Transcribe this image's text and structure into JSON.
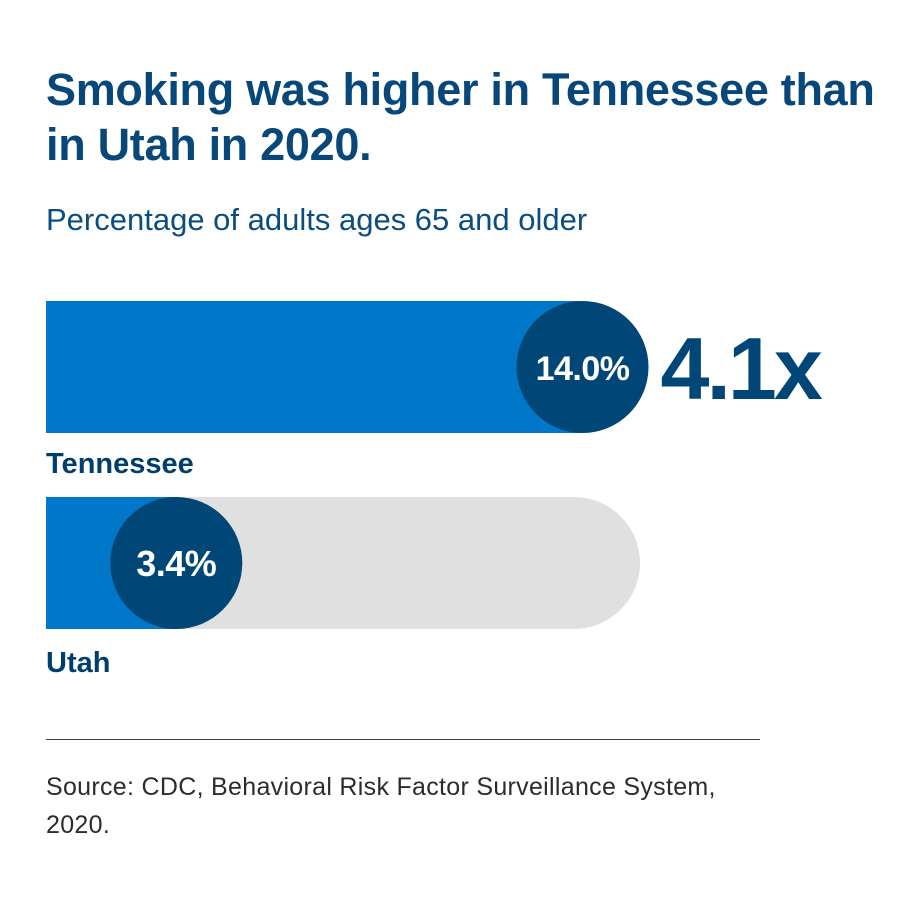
{
  "title": "Smoking was higher in Tennessee than in Utah in 2020.",
  "subtitle": "Percentage of adults ages 65 and older",
  "source": "Source: CDC, Behavioral Risk Factor Surveillance System, 2020.",
  "colors": {
    "bar": "#0077c8",
    "bubble": "#004677",
    "track": "#e0e0e0",
    "text": "#003e6e"
  },
  "chart_data": {
    "type": "bar",
    "orientation": "horizontal",
    "categories": [
      "Tennessee",
      "Utah"
    ],
    "values": [
      14.0,
      3.4
    ],
    "value_labels": [
      "14.0%",
      "3.4%"
    ],
    "unit": "%",
    "xlim": [
      0,
      15.5
    ],
    "annotation": "4.1x"
  }
}
